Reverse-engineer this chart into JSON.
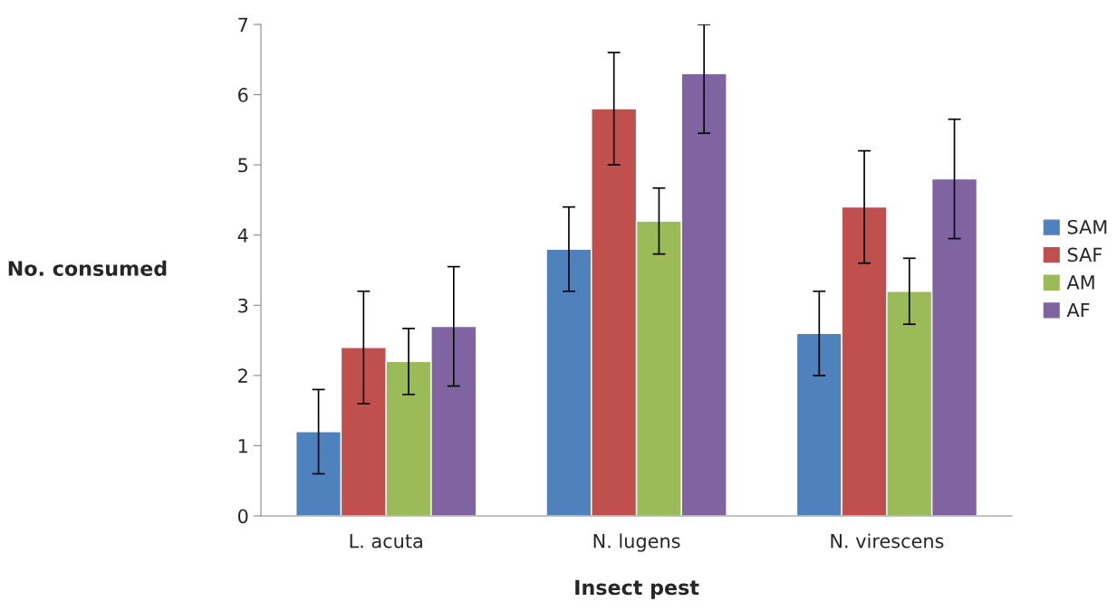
{
  "chart_data": {
    "type": "bar",
    "xlabel": "Insect pest",
    "ylabel": "No. consumed",
    "categories": [
      "L. acuta",
      "N. lugens",
      "N. virescens"
    ],
    "series": [
      {
        "name": "SAM",
        "color": "#4f81bd",
        "values": [
          1.2,
          3.8,
          2.6
        ],
        "errors": [
          [
            0.6,
            1.8
          ],
          [
            3.2,
            4.4
          ],
          [
            2.0,
            3.2
          ]
        ]
      },
      {
        "name": "SAF",
        "color": "#c0504d",
        "values": [
          2.4,
          5.8,
          4.4
        ],
        "errors": [
          [
            1.6,
            3.2
          ],
          [
            5.0,
            6.6
          ],
          [
            3.6,
            5.2
          ]
        ]
      },
      {
        "name": "AM",
        "color": "#9bbb59",
        "values": [
          2.2,
          4.2,
          3.2
        ],
        "errors": [
          [
            1.73,
            2.67
          ],
          [
            3.73,
            4.67
          ],
          [
            2.73,
            3.67
          ]
        ]
      },
      {
        "name": "AF",
        "color": "#8064a2",
        "values": [
          2.7,
          6.3,
          4.8
        ],
        "errors": [
          [
            1.85,
            3.55
          ],
          [
            5.45,
            7.0
          ],
          [
            3.95,
            5.65
          ]
        ]
      }
    ],
    "ylim": [
      0,
      7
    ],
    "yticks": [
      0,
      1,
      2,
      3,
      4,
      5,
      6,
      7
    ],
    "grid": false,
    "legend": "right"
  }
}
